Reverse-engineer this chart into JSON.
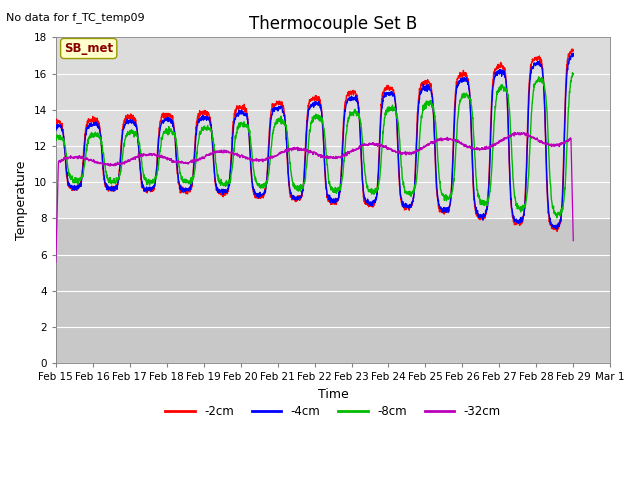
{
  "title": "Thermocouple Set B",
  "xlabel": "Time",
  "ylabel": "Temperature",
  "no_data_text": "No data for f_TC_temp09",
  "annotation_text": "SB_met",
  "ylim": [
    0,
    18
  ],
  "yticks": [
    0,
    2,
    4,
    6,
    8,
    10,
    12,
    14,
    16,
    18
  ],
  "line_colors": {
    "-2cm": "#ff0000",
    "-4cm": "#0000ff",
    "-8cm": "#00bb00",
    "-32cm": "#bb00bb"
  },
  "line_widths": {
    "-2cm": 1.0,
    "-4cm": 1.0,
    "-8cm": 1.0,
    "-32cm": 0.9
  },
  "bg_color_upper": "#dcdcdc",
  "bg_color_lower": "#c8c8c8",
  "data_floor": 8.0,
  "x_tick_labels": [
    "Feb 15",
    "Feb 16",
    "Feb 17",
    "Feb 18",
    "Feb 19",
    "Feb 20",
    "Feb 21",
    "Feb 22",
    "Feb 23",
    "Feb 24",
    "Feb 25",
    "Feb 26",
    "Feb 27",
    "Feb 28",
    "Feb 29",
    "Mar 1"
  ],
  "x_tick_positions": [
    0,
    1,
    2,
    3,
    4,
    5,
    6,
    7,
    8,
    9,
    10,
    11,
    12,
    13,
    14,
    15
  ]
}
